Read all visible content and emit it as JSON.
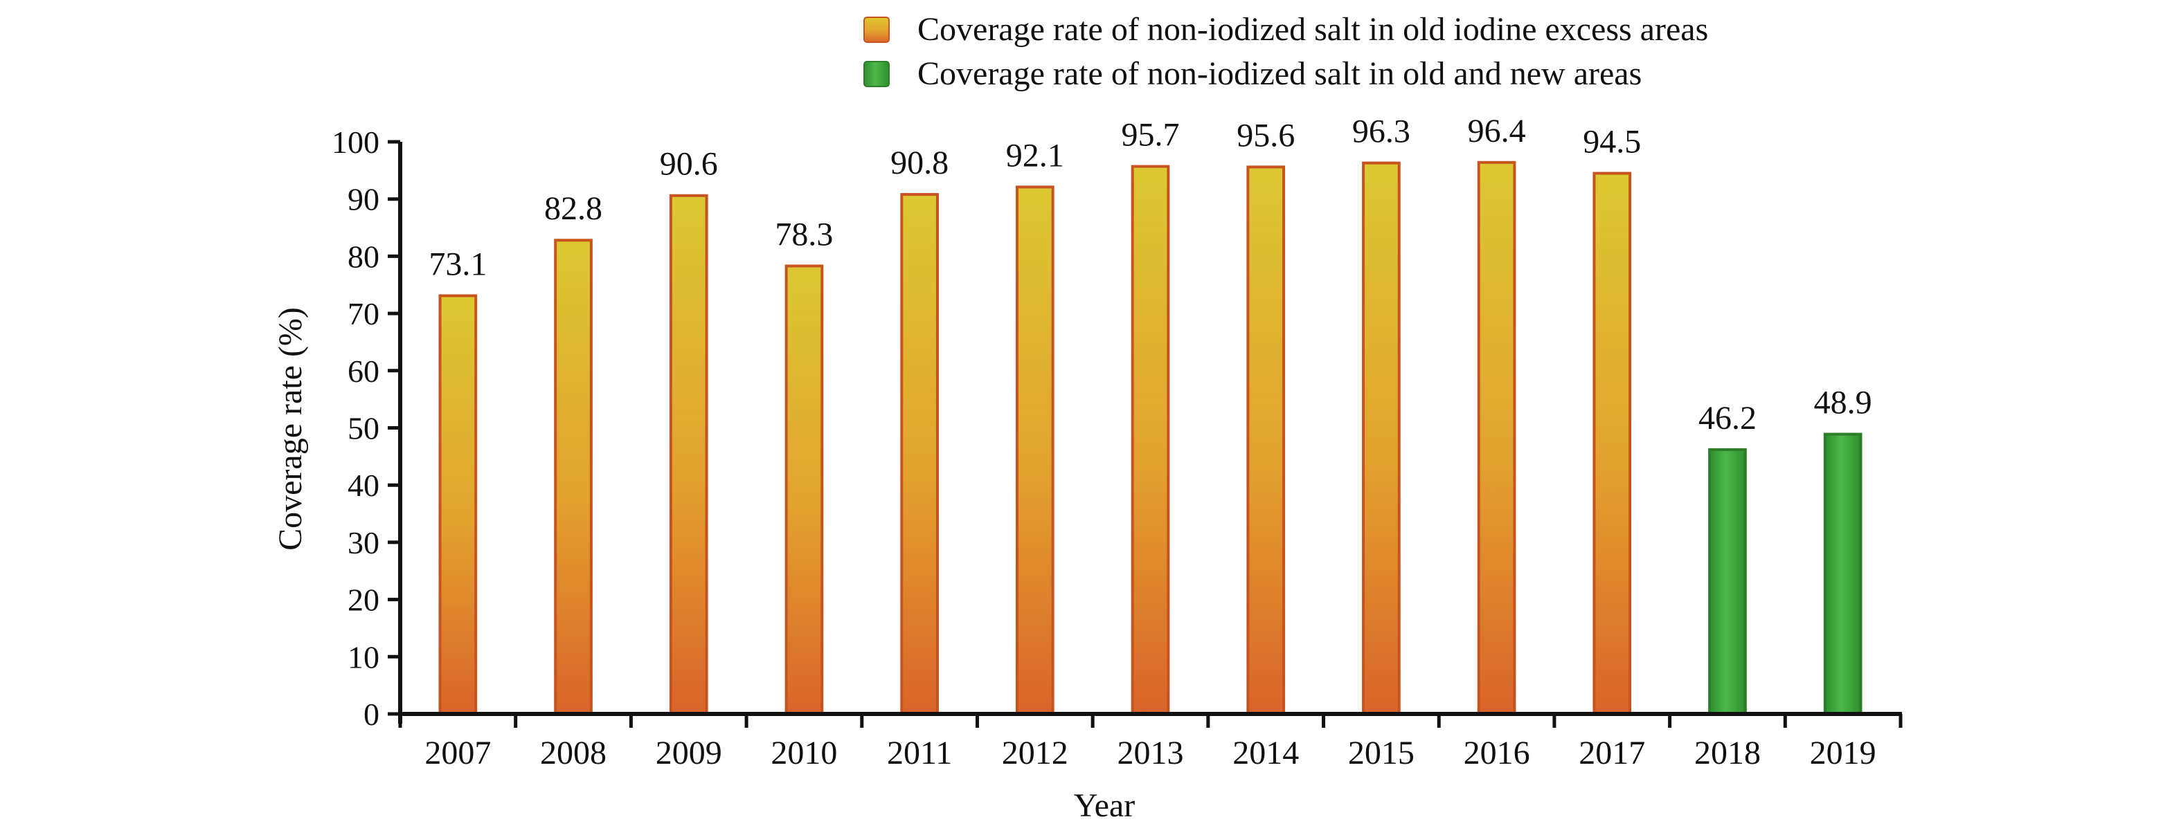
{
  "chart_data": {
    "type": "bar",
    "xlabel": "Year",
    "ylabel": "Coverage rate (%)",
    "ylim": [
      0,
      100
    ],
    "yticks": [
      0,
      10,
      20,
      30,
      40,
      50,
      60,
      70,
      80,
      90,
      100
    ],
    "grid": false,
    "legend_position": "top-right",
    "categories": [
      "2007",
      "2008",
      "2009",
      "2010",
      "2011",
      "2012",
      "2013",
      "2014",
      "2015",
      "2016",
      "2017",
      "2018",
      "2019"
    ],
    "series": [
      {
        "name": "Coverage rate of non-iodized salt in old iodine excess areas",
        "color": "#e08a2a",
        "values": [
          73.1,
          82.8,
          90.6,
          78.3,
          90.8,
          92.1,
          95.7,
          95.6,
          96.3,
          96.4,
          94.5,
          null,
          null
        ]
      },
      {
        "name": "Coverage rate of non-iodized salt in old and new areas",
        "color": "#3ea53a",
        "values": [
          null,
          null,
          null,
          null,
          null,
          null,
          null,
          null,
          null,
          null,
          null,
          46.2,
          48.9
        ]
      }
    ]
  }
}
